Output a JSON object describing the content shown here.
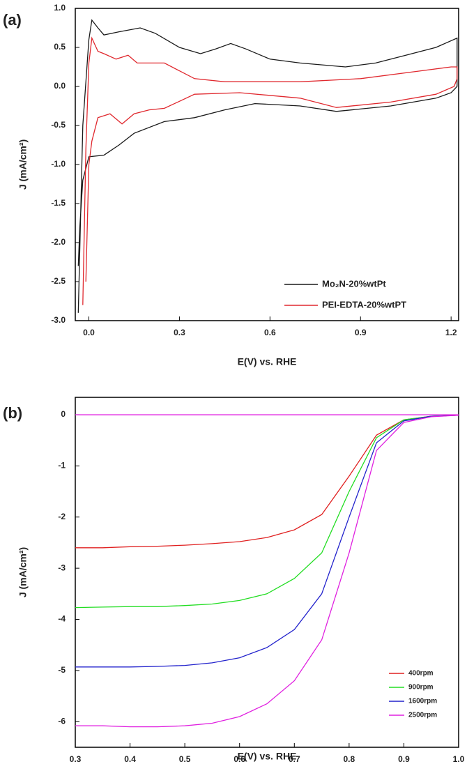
{
  "chart_data": [
    {
      "type": "line",
      "label": "(a)",
      "xlabel": "E(V) vs. RHE",
      "ylabel": "J (mA/cm²)",
      "xlim": [
        -0.045,
        1.225
      ],
      "ylim": [
        -3,
        1
      ],
      "xticks": [
        {
          "value": 0,
          "label": "0.0"
        },
        0.3,
        0.6,
        0.9,
        1.2
      ],
      "yticks": [
        {
          "value": -3,
          "label": "-3.0"
        },
        -2.5,
        {
          "value": -2,
          "label": "-2.0"
        },
        -1.5,
        {
          "value": -1,
          "label": "-1.0"
        },
        -0.5,
        {
          "value": 0,
          "label": "0.0"
        },
        0.5,
        {
          "value": 1,
          "label": "1.0"
        }
      ],
      "legend": "lower right",
      "series": [
        {
          "name": "Mo₂N-20%wtPt",
          "color": "#1a1a1a",
          "x": [
            -0.035,
            -0.02,
            0.0,
            0.01,
            0.03,
            0.05,
            0.1,
            0.17,
            0.22,
            0.3,
            0.37,
            0.42,
            0.47,
            0.52,
            0.6,
            0.7,
            0.85,
            0.95,
            1.05,
            1.15,
            1.22,
            1.22,
            1.2,
            1.15,
            1.0,
            0.82,
            0.7,
            0.55,
            0.45,
            0.35,
            0.25,
            0.15,
            0.1,
            0.05,
            0.0,
            -0.02,
            -0.03,
            -0.035
          ],
          "values": [
            -2.9,
            -0.5,
            0.6,
            0.85,
            0.75,
            0.66,
            0.7,
            0.75,
            0.68,
            0.5,
            0.42,
            0.48,
            0.55,
            0.48,
            0.35,
            0.3,
            0.25,
            0.3,
            0.4,
            0.5,
            0.62,
            0.0,
            -0.08,
            -0.15,
            -0.25,
            -0.32,
            -0.25,
            -0.22,
            -0.3,
            -0.4,
            -0.45,
            -0.6,
            -0.75,
            -0.88,
            -0.9,
            -1.2,
            -1.8,
            -2.3
          ]
        },
        {
          "name": "PEI-EDTA-20%wtPT",
          "color": "#e0282e",
          "x": [
            -0.02,
            -0.01,
            0.0,
            0.01,
            0.03,
            0.05,
            0.09,
            0.13,
            0.16,
            0.25,
            0.3,
            0.35,
            0.45,
            0.7,
            0.9,
            1.1,
            1.2,
            1.22,
            1.22,
            1.21,
            1.15,
            1.0,
            0.82,
            0.7,
            0.5,
            0.35,
            0.25,
            0.2,
            0.15,
            0.11,
            0.07,
            0.03,
            0.01,
            0.0,
            -0.01
          ],
          "values": [
            -2.8,
            -0.8,
            0.3,
            0.62,
            0.45,
            0.42,
            0.35,
            0.4,
            0.3,
            0.3,
            0.2,
            0.1,
            0.06,
            0.06,
            0.1,
            0.2,
            0.25,
            0.25,
            0.1,
            0.0,
            -0.1,
            -0.2,
            -0.27,
            -0.15,
            -0.08,
            -0.1,
            -0.28,
            -0.3,
            -0.35,
            -0.48,
            -0.35,
            -0.4,
            -0.7,
            -1.0,
            -2.5
          ]
        }
      ]
    },
    {
      "type": "line",
      "label": "(b)",
      "xlabel": "E(V) vs. RHE",
      "ylabel": "J (mA/cm²)",
      "xlim": [
        0.3,
        1.0
      ],
      "ylim": [
        -6.5,
        0.34
      ],
      "xticks": [
        0.3,
        0.4,
        0.5,
        0.6,
        0.7,
        0.8,
        0.9,
        {
          "value": 1,
          "label": "1.0"
        }
      ],
      "yticks": [
        -6,
        -5,
        -4,
        -3,
        -2,
        -1,
        0
      ],
      "legend": "lower right",
      "x": [
        0.3,
        0.35,
        0.4,
        0.45,
        0.5,
        0.55,
        0.6,
        0.65,
        0.7,
        0.75,
        0.8,
        0.85,
        0.9,
        0.95,
        1.0
      ],
      "series": [
        {
          "name": "400rpm",
          "color": "#e02020",
          "values": [
            -2.6,
            -2.6,
            -2.58,
            -2.57,
            -2.55,
            -2.52,
            -2.48,
            -2.4,
            -2.25,
            -1.95,
            -1.2,
            -0.4,
            -0.1,
            -0.03,
            -0.01
          ]
        },
        {
          "name": "900rpm",
          "color": "#22dd22",
          "values": [
            -3.77,
            -3.76,
            -3.75,
            -3.75,
            -3.73,
            -3.7,
            -3.63,
            -3.5,
            -3.2,
            -2.7,
            -1.5,
            -0.45,
            -0.1,
            -0.03,
            -0.01
          ]
        },
        {
          "name": "1600rpm",
          "color": "#2222cc",
          "values": [
            -4.93,
            -4.93,
            -4.93,
            -4.92,
            -4.9,
            -4.85,
            -4.75,
            -4.55,
            -4.2,
            -3.5,
            -2.0,
            -0.55,
            -0.12,
            -0.03,
            -0.01
          ]
        },
        {
          "name": "2500rpm",
          "color": "#e020e0",
          "values": [
            -6.08,
            -6.08,
            -6.1,
            -6.1,
            -6.08,
            -6.03,
            -5.9,
            -5.65,
            -5.2,
            -4.4,
            -2.7,
            -0.7,
            -0.15,
            -0.04,
            -0.01
          ]
        },
        {
          "color": "#e020e0",
          "values": [
            0,
            0,
            0,
            0,
            0,
            0,
            0,
            0,
            0,
            0,
            0,
            0,
            0,
            0,
            0
          ]
        }
      ]
    }
  ]
}
